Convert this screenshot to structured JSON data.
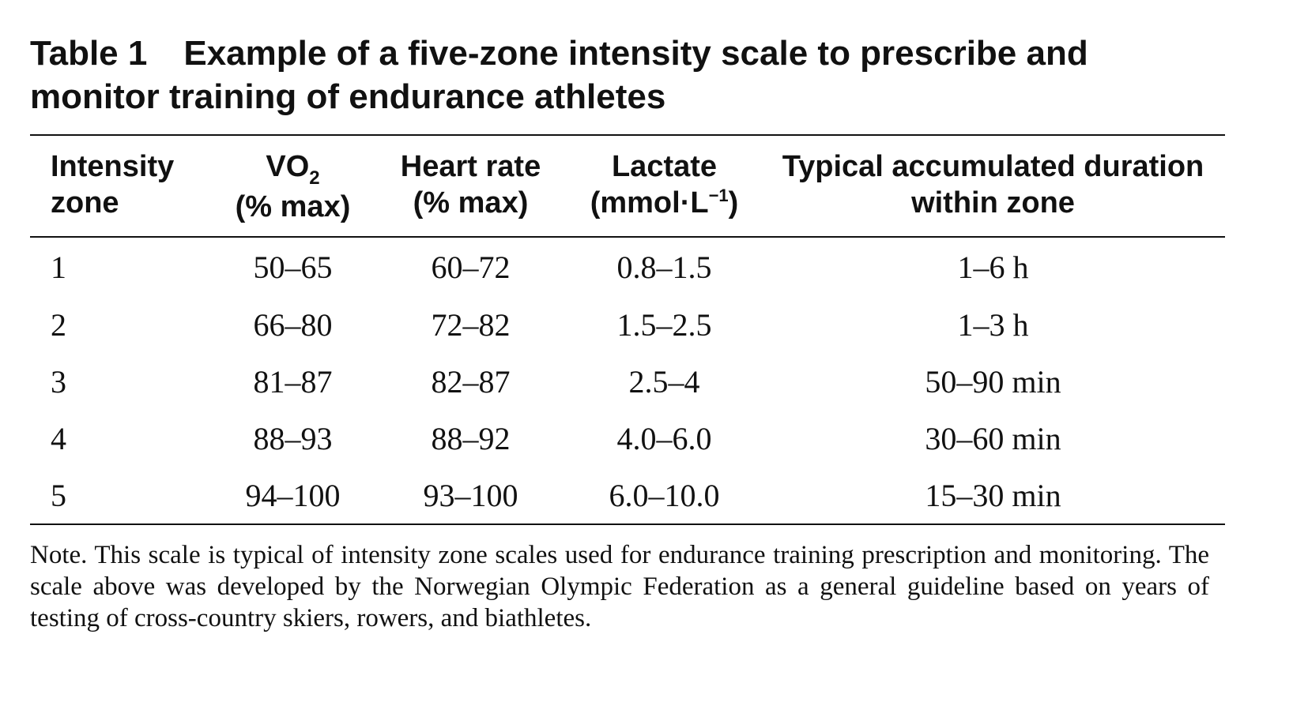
{
  "caption": {
    "label": "Table 1",
    "title": "Example of a five-zone intensity scale to prescribe and monitor training of endurance athletes"
  },
  "table": {
    "headers": {
      "zone": [
        "Intensity",
        "zone"
      ],
      "vo2": {
        "main": "VO",
        "sub": "2",
        "unit": "(% max)"
      },
      "heart_rate": [
        "Heart rate",
        "(% max)"
      ],
      "lactate": {
        "main": "Lactate",
        "unit_prefix": "(mmol·L",
        "unit_sup": "−1",
        "unit_suffix": ")"
      },
      "duration": [
        "Typical accumulated duration",
        "within zone"
      ]
    },
    "rows": [
      {
        "zone": "1",
        "vo2": "50–65",
        "heart_rate": "60–72",
        "lactate": "0.8–1.5",
        "duration": "1–6 h"
      },
      {
        "zone": "2",
        "vo2": "66–80",
        "heart_rate": "72–82",
        "lactate": "1.5–2.5",
        "duration": "1–3 h"
      },
      {
        "zone": "3",
        "vo2": "81–87",
        "heart_rate": "82–87",
        "lactate": "2.5–4",
        "duration": "50–90 min"
      },
      {
        "zone": "4",
        "vo2": "88–93",
        "heart_rate": "88–92",
        "lactate": "4.0–6.0",
        "duration": "30–60 min"
      },
      {
        "zone": "5",
        "vo2": "94–100",
        "heart_rate": "93–100",
        "lactate": "6.0–10.0",
        "duration": "15–30 min"
      }
    ]
  },
  "note": "Note. This scale is typical of intensity zone scales used for endurance training prescription and monitoring. The scale above was developed by the Norwegian Olympic Federation as a general guideline based on years of testing of cross-country skiers, rowers, and biathletes."
}
